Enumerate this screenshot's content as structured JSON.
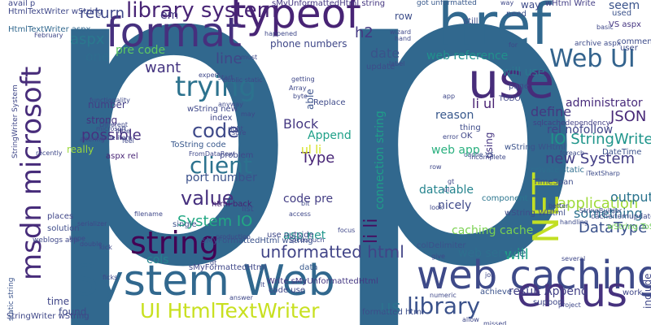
{
  "words": [
    {
      "text": "p",
      "color": "#31688e"
    },
    {
      "text": "p",
      "color": "#31688e"
    },
    {
      "text": "System Web",
      "color": "#31688e"
    },
    {
      "text": "href",
      "color": "#31688e"
    },
    {
      "text": "use",
      "color": "#472c7a"
    },
    {
      "text": "typeof",
      "color": "#482475"
    },
    {
      "text": "format",
      "color": "#46307e"
    },
    {
      "text": "msdn microsoft",
      "color": "#472c7a"
    },
    {
      "text": "web caching",
      "color": "#3e4a89"
    },
    {
      "text": "string",
      "color": "#440154"
    },
    {
      "text": "NET",
      "color": "#c2df23"
    },
    {
      "text": "en us",
      "color": "#46327e"
    },
    {
      "text": "Web UI",
      "color": "#33638d"
    },
    {
      "text": "trying",
      "color": "#2c728e"
    },
    {
      "text": "library system",
      "color": "#482475"
    },
    {
      "text": "UI HtmlTextWriter",
      "color": "#c8e020"
    },
    {
      "text": "library",
      "color": "#3b528b"
    },
    {
      "text": "us",
      "color": "#2c728e"
    },
    {
      "text": "client",
      "color": "#2c728e"
    },
    {
      "text": "code",
      "color": "#3e4989"
    },
    {
      "text": "value",
      "color": "#46307e"
    },
    {
      "text": "IO StringWriter",
      "color": "#1f958b"
    },
    {
      "text": "unformatted html",
      "color": "#414487"
    },
    {
      "text": "DataType",
      "color": "#3b528b"
    },
    {
      "text": "application",
      "color": "#9fda3a"
    },
    {
      "text": "JSON",
      "color": "#482878"
    },
    {
      "text": "System IO",
      "color": "#22a884"
    },
    {
      "text": "aspx",
      "color": "#2a788e"
    },
    {
      "text": "return",
      "color": "#3f4889"
    },
    {
      "text": "line",
      "color": "#404688"
    },
    {
      "text": "want",
      "color": "#453581"
    },
    {
      "text": "possible",
      "color": "#46307e"
    },
    {
      "text": "li li",
      "color": "#470d60"
    },
    {
      "text": "h2",
      "color": "#443983"
    },
    {
      "text": "date",
      "color": "#3a538b"
    },
    {
      "text": "one",
      "color": "#2f6c8e"
    },
    {
      "text": "pre code",
      "color": "#5ec962"
    },
    {
      "text": "web reference",
      "color": "#21918c"
    },
    {
      "text": "will use",
      "color": "#2a788e"
    },
    {
      "text": "li ul",
      "color": "#482173"
    },
    {
      "text": "define",
      "color": "#453781"
    },
    {
      "text": "administrator",
      "color": "#472a7a"
    },
    {
      "text": "rel nofollow",
      "color": "#404588"
    },
    {
      "text": "new System",
      "color": "#433e85"
    },
    {
      "text": "output",
      "color": "#2b748e"
    },
    {
      "text": "something",
      "color": "#2d708e"
    },
    {
      "text": "port number",
      "color": "#3b518b"
    },
    {
      "text": "connection string",
      "color": "#1f9e89"
    },
    {
      "text": "datatable",
      "color": "#25848e"
    },
    {
      "text": "nicely",
      "color": "#3e4989"
    },
    {
      "text": "caching cache",
      "color": "#7ad151"
    },
    {
      "text": "will",
      "color": "#20a386"
    },
    {
      "text": "asp net",
      "color": "#1f968b"
    },
    {
      "text": "code pre",
      "color": "#433d84"
    },
    {
      "text": "Type",
      "color": "#482677"
    },
    {
      "text": "Block",
      "color": "#453882"
    },
    {
      "text": "ul li",
      "color": "#d5e21a"
    },
    {
      "text": "web app",
      "color": "#2ab07f"
    },
    {
      "text": "web service",
      "color": "#2e6f8e"
    },
    {
      "text": "result Append",
      "color": "#424086"
    },
    {
      "text": "cols",
      "color": "#25848e"
    },
    {
      "text": "time",
      "color": "#404688"
    },
    {
      "text": "found",
      "color": "#3e4a89"
    },
    {
      "text": "reason",
      "color": "#38588c"
    },
    {
      "text": "Append",
      "color": "#1fa088"
    },
    {
      "text": "number",
      "color": "#433e85"
    },
    {
      "text": "strong",
      "color": "#46327e"
    },
    {
      "text": "really",
      "color": "#9bd93c"
    },
    {
      "text": "html back",
      "color": "#481f70"
    },
    {
      "text": "phone numbers",
      "color": "#3f4788"
    },
    {
      "text": "em",
      "color": "#453882"
    },
    {
      "text": "row",
      "color": "#3d4e8a"
    },
    {
      "text": "got unformatted",
      "color": "#38598c"
    },
    {
      "text": "way",
      "color": "#3e4c8a"
    },
    {
      "text": "seem",
      "color": "#3a538b"
    },
    {
      "text": "need",
      "color": "#3b518b"
    },
    {
      "text": "used",
      "color": "#3b528b"
    },
    {
      "text": "VS aspx",
      "color": "#453581"
    },
    {
      "text": "StringWriter wString",
      "color": "#3f4788"
    },
    {
      "text": "wString WHtml",
      "color": "#3b528b"
    },
    {
      "text": "HtmlTextWriter wString",
      "color": "#3f4889"
    },
    {
      "text": "HtmlTextWriter aspx",
      "color": "#31688e"
    },
    {
      "text": "ToString code",
      "color": "#38588c"
    },
    {
      "text": "wString new",
      "color": "#3f4889"
    },
    {
      "text": "Write sMyUnformattedHtml",
      "color": "#453882"
    },
    {
      "text": "TimeSpan",
      "color": "#3e4c8a"
    },
    {
      "text": "sqlcachedependency",
      "color": "#424086"
    },
    {
      "text": "cacheitemupdatecallback",
      "color": "#3e4a89"
    },
    {
      "text": "colDelimiter",
      "color": "#3b528b"
    },
    {
      "text": "sMyUnformattedHtml string",
      "color": "#453781"
    },
    {
      "text": "wHtml Write",
      "color": "#433e85"
    },
    {
      "text": "avail p",
      "color": "#3f4889"
    },
    {
      "text": "StringWriter System",
      "color": "#3f4788"
    },
    {
      "text": "aspx rel",
      "color": "#482475"
    },
    {
      "text": "private static",
      "color": "#2e6e8e"
    },
    {
      "text": "wString WHtml",
      "color": "#3e4c8a"
    },
    {
      "text": "wString ToString",
      "color": "#70cf57"
    },
    {
      "text": "static string",
      "color": "#3a548c"
    },
    {
      "text": "code use",
      "color": "#3f4889"
    },
    {
      "text": "DateTime",
      "color": "#3b518b"
    },
    {
      "text": "sMyFormattedHtml",
      "color": "#3f4788"
    },
    {
      "text": "sMyFormattedHtml wString",
      "color": "#3b528b"
    },
    {
      "text": "index",
      "color": "#404688"
    },
    {
      "text": "Replace",
      "color": "#3e4a89"
    },
    {
      "text": "component",
      "color": "#2b758e"
    },
    {
      "text": "achieve",
      "color": "#3b528b"
    },
    {
      "text": "formatted html",
      "color": "#3d4e8a"
    },
    {
      "text": "update",
      "color": "#3e4c8a"
    },
    {
      "text": "include",
      "color": "#3f4788"
    },
    {
      "text": "OK",
      "color": "#404688"
    },
    {
      "text": "using",
      "color": "#453581"
    },
    {
      "text": "able",
      "color": "#3b528b"
    },
    {
      "text": "thing",
      "color": "#3e4c8a"
    },
    {
      "text": "data",
      "color": "#38598c"
    },
    {
      "text": "places",
      "color": "#404688"
    },
    {
      "text": "solution",
      "color": "#3e4c8a"
    },
    {
      "text": "single",
      "color": "#3b528b"
    },
    {
      "text": "problem",
      "color": "#3f4889"
    },
    {
      "text": "list",
      "color": "#3f4889"
    },
    {
      "text": "work",
      "color": "#404688"
    },
    {
      "text": "support",
      "color": "#3f4788"
    },
    {
      "text": "page",
      "color": "#3f4788"
    },
    {
      "text": "still",
      "color": "#3e4c8a"
    },
    {
      "text": "user",
      "color": "#3e4c8a"
    },
    {
      "text": "comment",
      "color": "#3e4c8a"
    },
    {
      "text": "archive aspx",
      "color": "#3e4c8a"
    },
    {
      "text": "cache item",
      "color": "#3f4889"
    },
    {
      "text": "FromDataRow",
      "color": "#3f4889"
    },
    {
      "text": "public static",
      "color": "#3f4889"
    },
    {
      "text": "weblogs asp",
      "color": "#3f4889"
    },
    {
      "text": "TODO",
      "color": "#3f4889"
    },
    {
      "text": "cache VS",
      "color": "#3b528b"
    },
    {
      "text": "iTextSharp",
      "color": "#3e4c8a"
    },
    {
      "text": "foreach",
      "color": "#3e4c8a"
    },
    {
      "text": "handling",
      "color": "#3e4c8a"
    },
    {
      "text": "microsoft",
      "color": "#3f4889"
    },
    {
      "text": "functionality",
      "color": "#3f4889"
    },
    {
      "text": "Different",
      "color": "#3f4889"
    },
    {
      "text": "little",
      "color": "#3f4889"
    },
    {
      "text": "serializer",
      "color": "#3f4889"
    },
    {
      "text": "filename",
      "color": "#3f4889"
    },
    {
      "text": "gt",
      "color": "#3f4889"
    },
    {
      "text": "lt",
      "color": "#3f4889"
    },
    {
      "text": "kick",
      "color": "#3f4889"
    },
    {
      "text": "give",
      "color": "#3f4889"
    },
    {
      "text": "use outside",
      "color": "#3f4889"
    },
    {
      "text": "ul",
      "color": "#3f4889"
    },
    {
      "text": "byte",
      "color": "#3f4889"
    },
    {
      "text": "app",
      "color": "#3f4889"
    },
    {
      "text": "for",
      "color": "#3f4889"
    },
    {
      "text": "wizard",
      "color": "#3f4889"
    },
    {
      "text": "label",
      "color": "#3f4889"
    },
    {
      "text": "happened",
      "color": "#3f4889"
    },
    {
      "text": "basic",
      "color": "#3f4889"
    },
    {
      "text": "job",
      "color": "#3f4889"
    },
    {
      "text": "numeric",
      "color": "#3f4889"
    },
    {
      "text": "missed",
      "color": "#3f4889"
    },
    {
      "text": "allow",
      "color": "#3f4889"
    },
    {
      "text": "project",
      "color": "#3f4889"
    },
    {
      "text": "StringBuilder",
      "color": "#3f4889"
    },
    {
      "text": "better",
      "color": "#3f4889"
    },
    {
      "text": "several",
      "color": "#3f4889"
    },
    {
      "text": "error",
      "color": "#3f4889"
    },
    {
      "text": "incomplete",
      "color": "#3f4889"
    },
    {
      "text": "focus",
      "color": "#3f4889"
    },
    {
      "text": "dt",
      "color": "#3f4889"
    },
    {
      "text": "answer",
      "color": "#3f4889"
    },
    {
      "text": "production",
      "color": "#3f4889"
    },
    {
      "text": "access",
      "color": "#3f4889"
    },
    {
      "text": "right",
      "color": "#3f4889"
    },
    {
      "text": "expert",
      "color": "#3f4889"
    },
    {
      "text": "start",
      "color": "#3f4889"
    },
    {
      "text": "February",
      "color": "#3f4889"
    },
    {
      "text": "altering",
      "color": "#3f4889"
    },
    {
      "text": "recently",
      "color": "#3f4889"
    },
    {
      "text": "ficks",
      "color": "#3f4889"
    },
    {
      "text": "feel",
      "color": "#3f4889"
    },
    {
      "text": "double",
      "color": "#3f4889"
    },
    {
      "text": "must",
      "color": "#3f4889"
    },
    {
      "text": "anyway",
      "color": "#3f4889"
    },
    {
      "text": "may",
      "color": "#3f4889"
    },
    {
      "text": "sure",
      "color": "#3f4889"
    },
    {
      "text": "look",
      "color": "#3f4889"
    },
    {
      "text": "getting",
      "color": "#3f4889"
    },
    {
      "text": "bit",
      "color": "#3f4889"
    },
    {
      "text": "hand",
      "color": "#3f4889"
    },
    {
      "text": "row",
      "color": "#3f4889"
    },
    {
      "text": "hope",
      "color": "#3f4889"
    },
    {
      "text": "Array",
      "color": "#3f4889"
    },
    {
      "text": "spcdunuch",
      "color": "#3f4889"
    },
    {
      "text": "way",
      "color": "#3f4889"
    }
  ]
}
